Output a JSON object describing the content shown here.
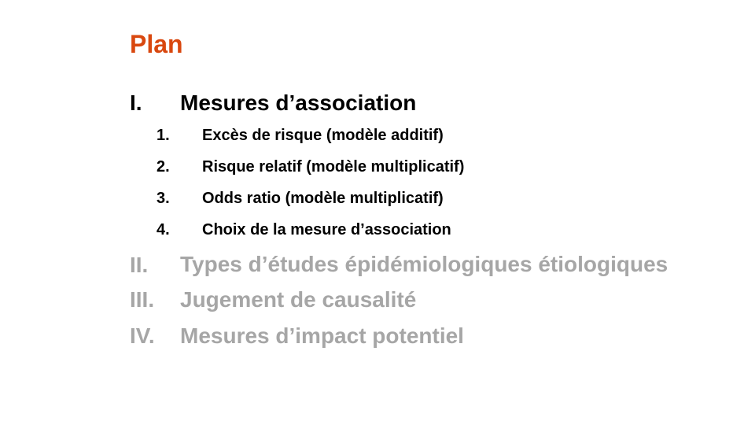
{
  "slide": {
    "title": "Plan",
    "sections": [
      {
        "number": "I.",
        "label": "Mesures d’association",
        "subitems": [
          {
            "number": "1.",
            "label": "Excès de risque (modèle additif)"
          },
          {
            "number": "2.",
            "label": "Risque relatif (modèle multiplicatif)"
          },
          {
            "number": "3.",
            "label": "Odds ratio (modèle multiplicatif)"
          },
          {
            "number": "4.",
            "label": "Choix de la mesure d’association"
          }
        ]
      },
      {
        "number": "II.",
        "label": "Types d’études épidémiologiques étiologiques"
      },
      {
        "number": "III.",
        "label": "Jugement de causalité"
      },
      {
        "number": "IV.",
        "label": "Mesures d’impact potentiel"
      }
    ]
  },
  "colors": {
    "title": "#d9480f",
    "active_text": "#000000",
    "muted_text": "#a6a6a6",
    "background": "#ffffff"
  }
}
